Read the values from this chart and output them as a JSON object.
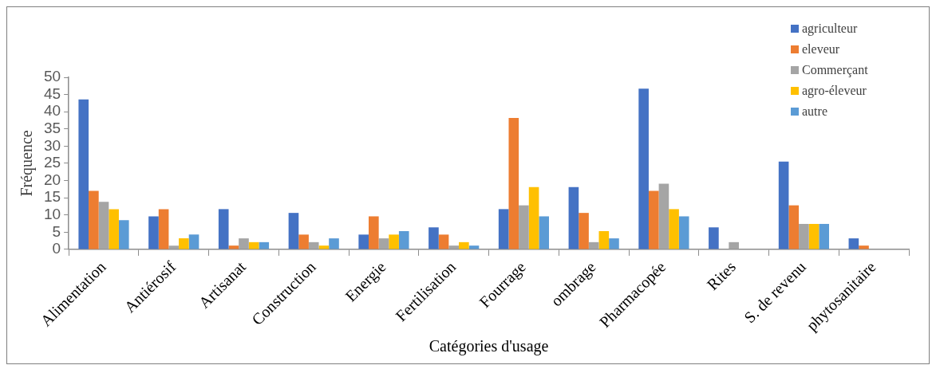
{
  "chart_data": {
    "type": "bar",
    "xlabel": "Catégories d'usage",
    "ylabel": "Fréquence",
    "categories": [
      "Alimentation",
      "Antiérosif",
      "Artisanat",
      "Construction",
      "Energie",
      "Fertilisation",
      "Fourrage",
      "ombrage",
      "Pharmacopée",
      "Rites",
      "S. de revenu",
      "phytosanitaire"
    ],
    "series": [
      {
        "name": "agriculteur",
        "color": "#4472c4",
        "values": [
          43.6,
          9.6,
          11.7,
          10.6,
          4.3,
          6.4,
          11.7,
          18.1,
          46.7,
          6.4,
          25.5,
          3.2
        ]
      },
      {
        "name": "eleveur",
        "color": "#ed7d31",
        "values": [
          17,
          11.7,
          1.1,
          4.3,
          9.6,
          4.3,
          38.2,
          10.6,
          17,
          0,
          12.8,
          1.1
        ]
      },
      {
        "name": "Commerçant",
        "color": "#a5a5a5",
        "values": [
          13.8,
          1.1,
          3.2,
          2.1,
          3.2,
          1.1,
          12.8,
          2.1,
          19.1,
          2.1,
          7.4,
          0
        ]
      },
      {
        "name": "agro-éleveur",
        "color": "#ffc000",
        "values": [
          11.7,
          3.2,
          2.1,
          1.1,
          4.3,
          2.1,
          18.1,
          5.3,
          11.7,
          0,
          7.4,
          0
        ]
      },
      {
        "name": "autre",
        "color": "#5b9bd5",
        "values": [
          8.5,
          4.3,
          2.1,
          3.2,
          5.3,
          1.1,
          9.6,
          3.2,
          9.6,
          0,
          7.4,
          0
        ]
      }
    ],
    "ylim": [
      0,
      50
    ],
    "yticks": [
      0,
      5,
      10,
      15,
      20,
      25,
      30,
      35,
      40,
      45,
      50
    ],
    "grid": false,
    "legend": "top right"
  }
}
